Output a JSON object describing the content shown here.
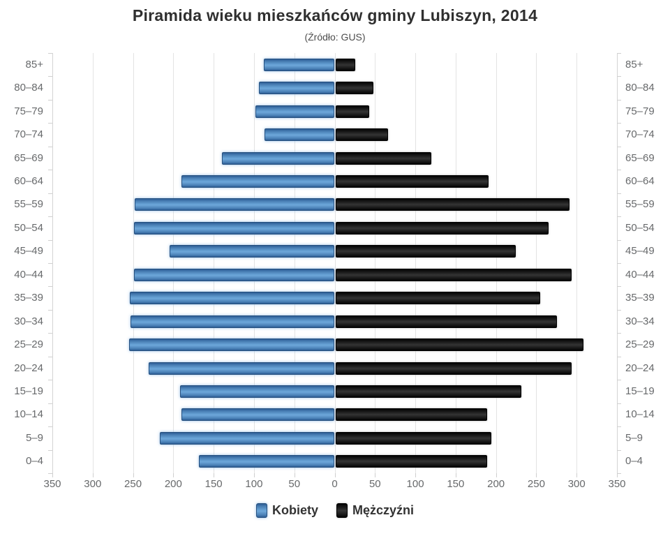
{
  "chart_data": {
    "type": "bar",
    "orientation": "population-pyramid",
    "title": "Piramida wieku mieszkańców gminy Lubiszyn, 2014",
    "subtitle": "(Źródło: GUS)",
    "categories": [
      "85+",
      "80–84",
      "75–79",
      "70–74",
      "65–69",
      "60–64",
      "55–59",
      "50–54",
      "45–49",
      "40–44",
      "35–39",
      "30–34",
      "25–29",
      "20–24",
      "15–19",
      "10–14",
      "5–9",
      "0–4"
    ],
    "series": [
      {
        "name": "Kobiety",
        "side": "left",
        "color": "#4f86c0",
        "values": [
          88,
          94,
          98,
          87,
          140,
          190,
          248,
          249,
          205,
          249,
          254,
          253,
          255,
          231,
          192,
          190,
          217,
          168
        ]
      },
      {
        "name": "Mężczyźni",
        "side": "right",
        "color": "#141414",
        "values": [
          25,
          47,
          42,
          65,
          119,
          190,
          290,
          264,
          224,
          293,
          254,
          275,
          308,
          293,
          231,
          188,
          193,
          188
        ]
      }
    ],
    "xlim": [
      0,
      350
    ],
    "x_tick_step": 50,
    "x_tick_labels": [
      "350",
      "300",
      "250",
      "200",
      "150",
      "100",
      "50",
      "0",
      "50",
      "100",
      "150",
      "200",
      "250",
      "300",
      "350"
    ],
    "grid": true,
    "legend_position": "bottom",
    "colors": {
      "grid_line": "#e3e3e3",
      "axis_line": "#d4d4d4",
      "tick": "#cfcfcf",
      "axis_label": "#67696b",
      "title_text": "#2f2f2f",
      "subtitle_text": "#4d4d4d",
      "legend_text": "#333333",
      "background": "#ffffff"
    }
  }
}
